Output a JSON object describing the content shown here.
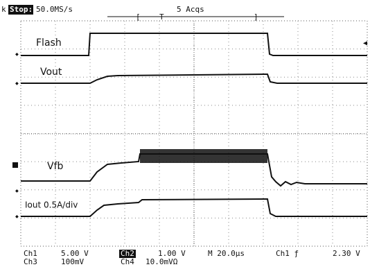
{
  "header": {
    "fragment": "k",
    "status": "Stop:",
    "sample_rate": "50.0MS/s",
    "acquisitions": "5 Acqs",
    "trigger": "T"
  },
  "traces": [
    "Flash",
    "Vout",
    "Vfb",
    "Iout 0.5A/div"
  ],
  "footer": {
    "ch1": "Ch1",
    "ch1_scale": "5.00 V",
    "ch2": "Ch2",
    "ch2_scale": "1.00 V",
    "timebase": "M 20.0µs",
    "trigger_source": "Ch1 ƒ",
    "trigger_level": "2.30 V",
    "ch3": "Ch3",
    "ch3_scale": "100mV",
    "ch4": "Ch4",
    "ch4_scale": "10.0mVΩ"
  }
}
